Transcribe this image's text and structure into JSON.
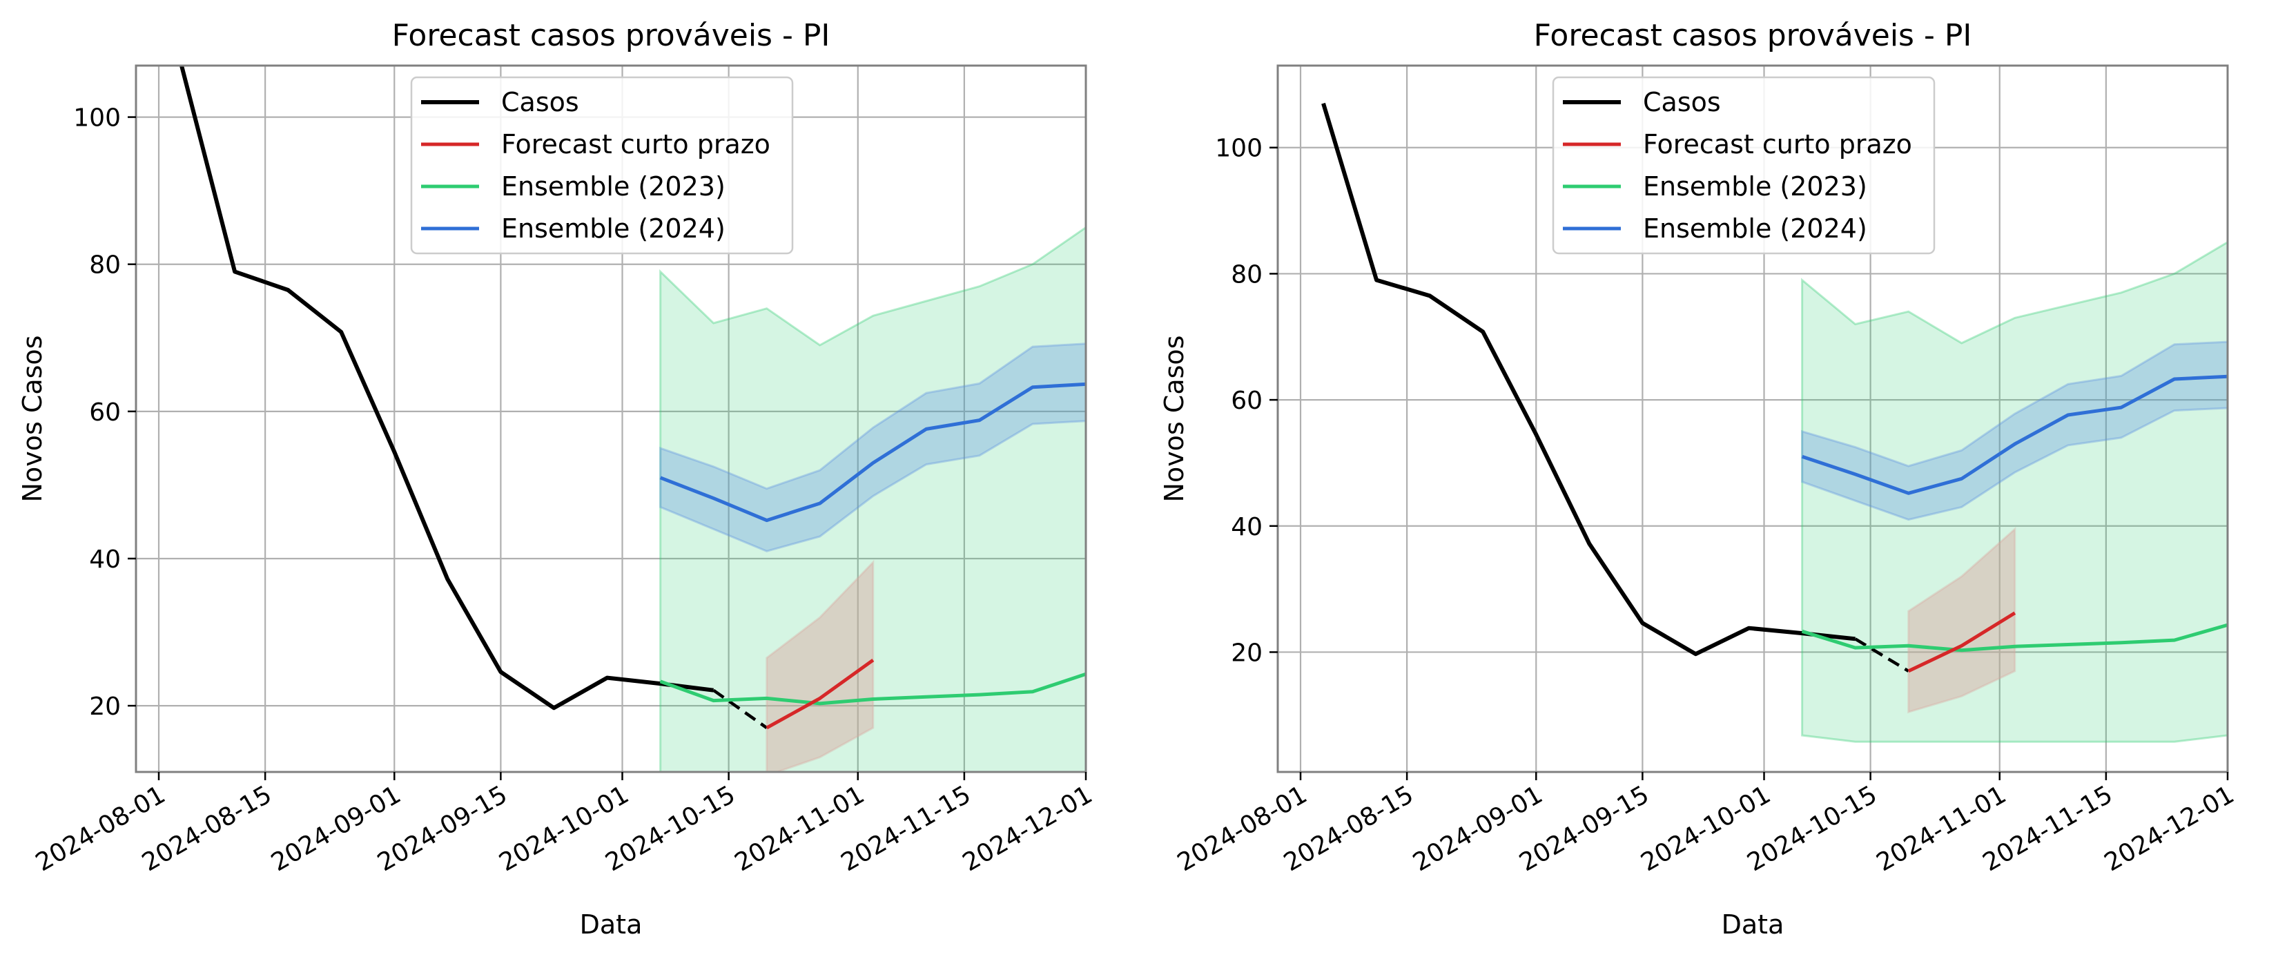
{
  "chart_data": [
    {
      "type": "line",
      "title": "Forecast casos prováveis - PI",
      "xlabel": "Data",
      "ylabel": "Novos Casos",
      "ylim": [
        11,
        107
      ],
      "xlim": [
        "2024-07-29",
        "2024-12-01"
      ],
      "x_ticks": [
        "2024-08-01",
        "2024-08-15",
        "2024-09-01",
        "2024-09-15",
        "2024-10-01",
        "2024-10-15",
        "2024-11-01",
        "2024-11-15",
        "2024-12-01"
      ],
      "y_ticks": [
        20,
        40,
        60,
        80,
        100
      ],
      "grid": true,
      "legend_position": "top-center",
      "legend": [
        "Casos",
        "Forecast curto prazo",
        "Ensemble (2023)",
        "Ensemble (2024)"
      ]
    },
    {
      "type": "line",
      "title": "Forecast casos prováveis - PI",
      "xlabel": "Data",
      "ylabel": "Novos Casos",
      "ylim": [
        1,
        113
      ],
      "xlim": [
        "2024-07-29",
        "2024-12-01"
      ],
      "x_ticks": [
        "2024-08-01",
        "2024-08-15",
        "2024-09-01",
        "2024-09-15",
        "2024-10-01",
        "2024-10-15",
        "2024-11-01",
        "2024-11-15",
        "2024-12-01"
      ],
      "y_ticks": [
        20,
        40,
        60,
        80,
        100
      ],
      "grid": true,
      "legend_position": "top-center",
      "legend": [
        "Casos",
        "Forecast curto prazo",
        "Ensemble (2023)",
        "Ensemble (2024)"
      ]
    }
  ],
  "series_data": {
    "casos": {
      "x": [
        "2024-08-04",
        "2024-08-11",
        "2024-08-18",
        "2024-08-25",
        "2024-09-01",
        "2024-09-08",
        "2024-09-15",
        "2024-09-22",
        "2024-09-29",
        "2024-10-06",
        "2024-10-13"
      ],
      "y": [
        107,
        79,
        76.5,
        70.8,
        54.5,
        37.2,
        24.6,
        19.7,
        23.8,
        23.0,
        22.1
      ]
    },
    "casos_dashed": {
      "x": [
        "2024-10-13",
        "2024-10-20"
      ],
      "y": [
        22.1,
        17.0
      ]
    },
    "forecast_curto_prazo": {
      "x": [
        "2024-10-20",
        "2024-10-27",
        "2024-11-03"
      ],
      "y": [
        17.0,
        21.0,
        26.2
      ],
      "lower": [
        10.5,
        13.0,
        17.0
      ],
      "upper": [
        26.5,
        32.0,
        39.5
      ]
    },
    "ensemble_2023": {
      "x": [
        "2024-10-06",
        "2024-10-13",
        "2024-10-20",
        "2024-10-27",
        "2024-11-03",
        "2024-11-10",
        "2024-11-17",
        "2024-11-24",
        "2024-12-01"
      ],
      "y": [
        23.3,
        20.7,
        21.0,
        20.3,
        20.9,
        21.2,
        21.5,
        21.9,
        24.3
      ],
      "lower": [
        6.8,
        5.8,
        5.8,
        5.8,
        5.8,
        5.8,
        5.8,
        5.8,
        6.8
      ],
      "upper": [
        79.0,
        72.0,
        74.0,
        69.0,
        73.0,
        75.0,
        77.0,
        80.0,
        85.0
      ]
    },
    "ensemble_2024": {
      "x": [
        "2024-10-06",
        "2024-10-13",
        "2024-10-20",
        "2024-10-27",
        "2024-11-03",
        "2024-11-10",
        "2024-11-17",
        "2024-11-24",
        "2024-12-01"
      ],
      "y": [
        51.0,
        48.2,
        45.2,
        47.5,
        53.0,
        57.6,
        58.8,
        63.3,
        63.7
      ],
      "lower": [
        47.0,
        44.0,
        41.0,
        43.0,
        48.5,
        52.8,
        54.0,
        58.3,
        58.7
      ],
      "upper": [
        55.0,
        52.5,
        49.5,
        52.0,
        57.8,
        62.5,
        63.8,
        68.8,
        69.2
      ]
    }
  },
  "colors": {
    "casos": "#000000",
    "forecast_curto_prazo": "#d62728",
    "forecast_band": "#d9a9a0",
    "ensemble_2023": "#2ecc71",
    "ensemble_2023_band": "#2ecc71",
    "ensemble_2024": "#2f6fd6",
    "ensemble_2024_band": "#5b8fe0",
    "grid": "#b0b0b0",
    "frame": "#808080"
  }
}
